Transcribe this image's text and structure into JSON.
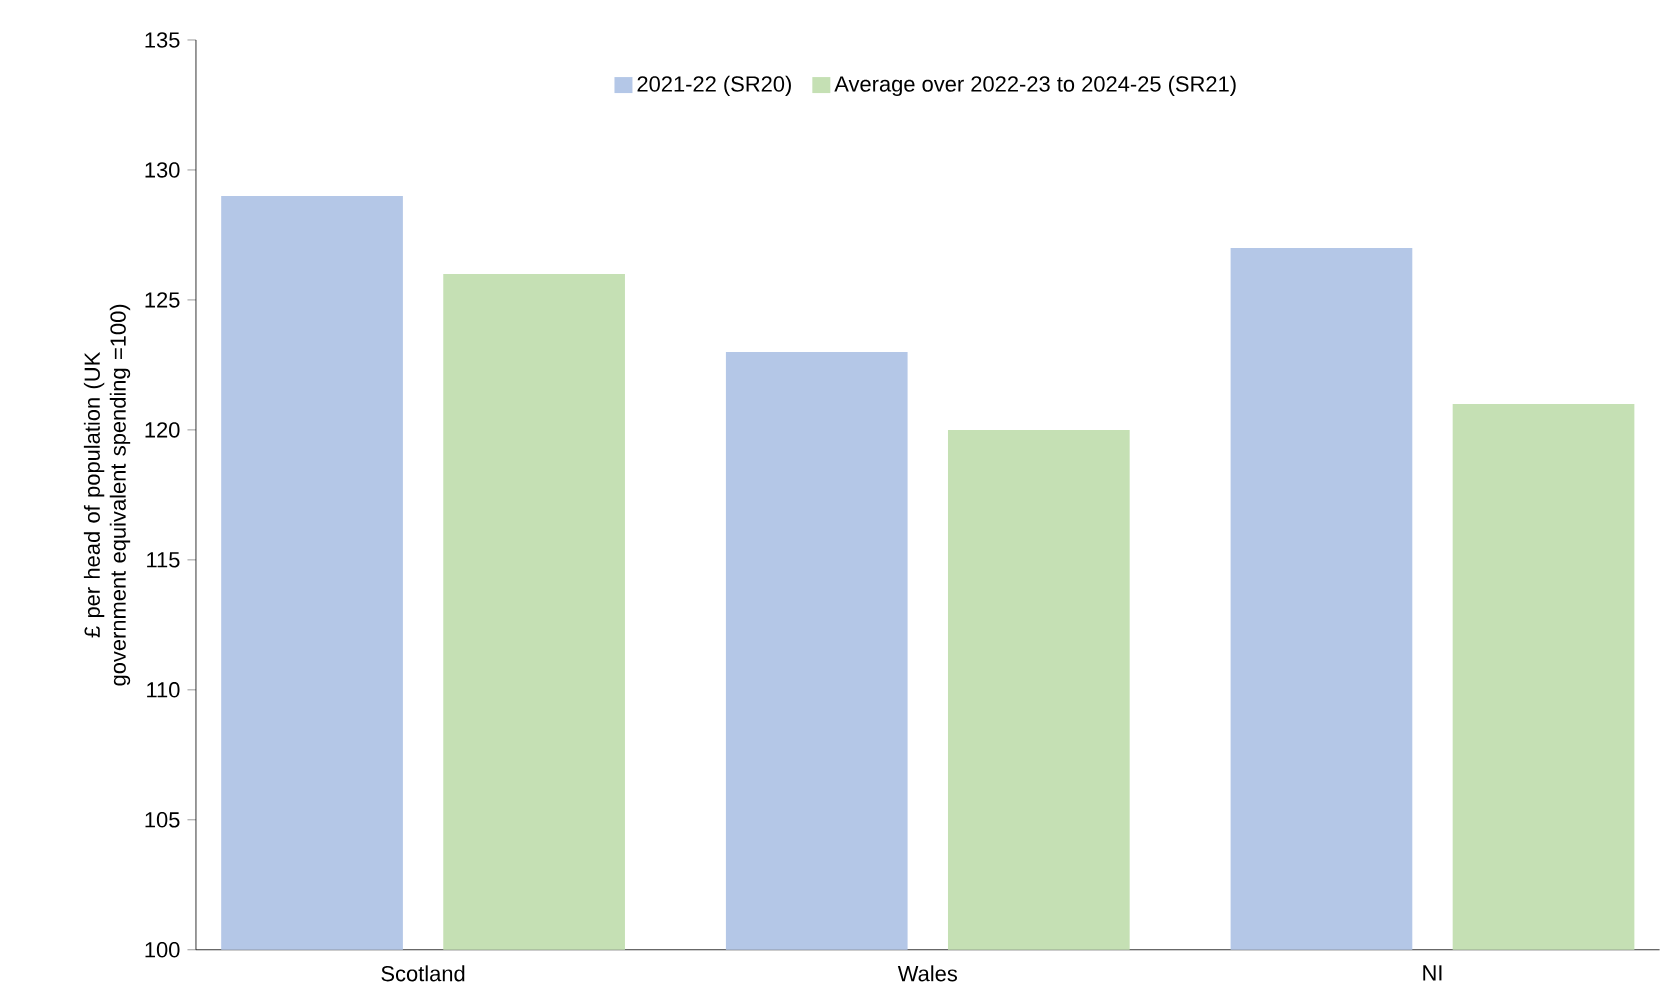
{
  "chart_data": {
    "type": "bar",
    "ylabel": "£ per head of population (UK government equivalent spending =100)",
    "categories": [
      "Scotland",
      "Wales",
      "NI"
    ],
    "series": [
      {
        "name": "2021-22 (SR20)",
        "color": "#b4c7e7",
        "values": [
          129,
          123,
          127
        ]
      },
      {
        "name": "Average over 2022-23 to 2024-25 (SR21)",
        "color": "#c5e0b4",
        "values": [
          126,
          120,
          121
        ]
      }
    ],
    "ylim": [
      100,
      135
    ],
    "yticks": [
      100,
      105,
      110,
      115,
      120,
      125,
      130,
      135
    ],
    "grid": false,
    "legend": "top"
  }
}
